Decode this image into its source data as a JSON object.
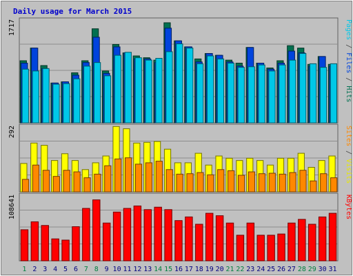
{
  "chart_data": {
    "type": "bar",
    "title": "Daily usage for March 2015",
    "days": [
      "1",
      "2",
      "3",
      "4",
      "5",
      "6",
      "7",
      "8",
      "9",
      "10",
      "11",
      "12",
      "13",
      "14",
      "15",
      "16",
      "17",
      "18",
      "19",
      "20",
      "21",
      "22",
      "23",
      "24",
      "25",
      "26",
      "27",
      "28",
      "29",
      "30",
      "31"
    ],
    "weekend_days": [
      "1",
      "7",
      "8",
      "14",
      "15",
      "21",
      "22",
      "28",
      "29"
    ],
    "panels": [
      {
        "id": "hits",
        "max_label": "1717",
        "max": 1717,
        "ylabels": [
          {
            "text": "Pages",
            "color": "#00c8e8"
          },
          {
            "text": " / ",
            "color": "#444444"
          },
          {
            "text": "Files",
            "color": "#0044dd"
          },
          {
            "text": " / ",
            "color": "#444444"
          },
          {
            "text": "Hits",
            "color": "#007050"
          }
        ],
        "series": [
          {
            "name": "Hits",
            "color": "#007050",
            "values": [
              1030,
              1240,
              950,
              660,
              680,
              830,
              1030,
              1560,
              860,
              1300,
              1160,
              1110,
              1080,
              1040,
              1660,
              1360,
              1260,
              1060,
              1150,
              1120,
              1040,
              990,
              1250,
              990,
              910,
              1030,
              1280,
              1240,
              970,
              1100,
              970
            ]
          },
          {
            "name": "Files",
            "color": "#0044dd",
            "values": [
              990,
              1240,
              900,
              660,
              680,
              790,
              1000,
              1420,
              820,
              1260,
              1160,
              1060,
              1060,
              1000,
              1570,
              1360,
              1260,
              1010,
              1150,
              1120,
              1010,
              940,
              1250,
              990,
              890,
              990,
              1190,
              1160,
              940,
              1100,
              940
            ]
          },
          {
            "name": "Pages",
            "color": "#00c8e8",
            "values": [
              890,
              860,
              900,
              640,
              650,
              730,
              940,
              1000,
              780,
              1120,
              1170,
              1080,
              1040,
              1070,
              1180,
              1310,
              1240,
              980,
              1110,
              1060,
              990,
              920,
              930,
              960,
              860,
              960,
              1040,
              1150,
              980,
              920,
              980
            ]
          }
        ]
      },
      {
        "id": "visits",
        "max_label": "292",
        "max": 292,
        "ylabels": [
          {
            "text": "Sites",
            "color": "#ff8800"
          },
          {
            "text": " / ",
            "color": "#444444"
          },
          {
            "text": "Visits",
            "color": "#e8e800"
          }
        ],
        "series": [
          {
            "name": "Visits",
            "color": "#ffff00",
            "values": [
              125,
              215,
              205,
              138,
              168,
              138,
              98,
              128,
              158,
              288,
              278,
              215,
              218,
              222,
              188,
              128,
              128,
              170,
              118,
              158,
              148,
              138,
              148,
              138,
              118,
              148,
              148,
              170,
              108,
              138,
              158
            ]
          },
          {
            "name": "Sites",
            "color": "#ff8800",
            "values": [
              55,
              118,
              95,
              68,
              95,
              88,
              62,
              78,
              115,
              145,
              150,
              122,
              128,
              135,
              98,
              78,
              80,
              85,
              75,
              98,
              93,
              73,
              88,
              80,
              82,
              78,
              85,
              95,
              48,
              80,
              62
            ]
          }
        ]
      },
      {
        "id": "kbytes",
        "max_label": "108641",
        "max": 108641,
        "ylabels": [
          {
            "text": "KBytes",
            "color": "#ff0000"
          }
        ],
        "series": [
          {
            "name": "KBytes",
            "color": "#ff0000",
            "values": [
              51000,
              64000,
              58000,
              36000,
              34000,
              56000,
              86000,
              100000,
              62000,
              80000,
              86000,
              90000,
              84000,
              88000,
              84000,
              66000,
              72000,
              60000,
              78000,
              74000,
              62000,
              42000,
              62000,
              42000,
              42000,
              44000,
              62000,
              68000,
              60000,
              72000,
              78000
            ]
          }
        ]
      }
    ]
  }
}
